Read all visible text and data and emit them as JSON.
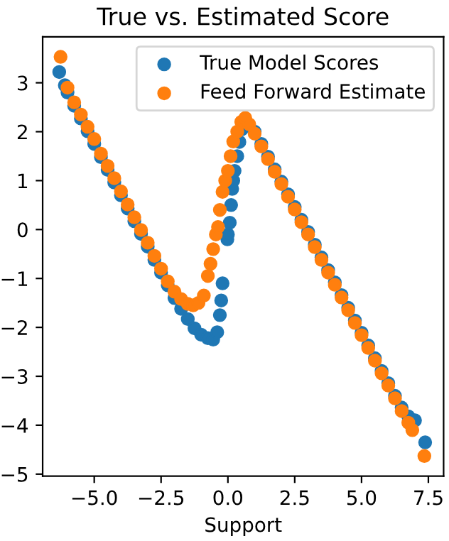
{
  "chart_data": {
    "type": "scatter",
    "title": "True vs. Estimated Score",
    "xlabel": "Support",
    "series": [
      {
        "name": "True Model Scores",
        "color": "#1f77b4",
        "x": [
          -6.31,
          -6.1,
          -6.0,
          -5.75,
          -5.5,
          -5.25,
          -5.0,
          -4.75,
          -4.5,
          -4.25,
          -4.0,
          -3.75,
          -3.5,
          -3.25,
          -3.0,
          -2.75,
          -2.5,
          -2.25,
          -2.0,
          -1.75,
          -1.5,
          -1.25,
          -1.0,
          -0.75,
          -0.55,
          -0.4,
          -0.3,
          -0.25,
          -0.2,
          -0.02,
          0.0,
          0.07,
          0.12,
          0.16,
          0.2,
          0.25,
          0.35,
          0.43,
          0.52,
          1.0,
          1.25,
          1.5,
          1.75,
          2.0,
          2.25,
          2.5,
          2.75,
          3.0,
          3.25,
          3.5,
          3.75,
          4.0,
          4.25,
          4.5,
          4.75,
          5.0,
          5.25,
          5.5,
          5.75,
          6.0,
          6.25,
          6.5,
          6.75,
          7.0,
          7.38
        ],
        "values": [
          3.22,
          2.95,
          2.8,
          2.53,
          2.27,
          2.01,
          1.75,
          1.48,
          1.22,
          0.96,
          0.7,
          0.43,
          0.17,
          -0.09,
          -0.35,
          -0.62,
          -0.88,
          -1.14,
          -1.4,
          -1.62,
          -1.83,
          -2.02,
          -2.15,
          -2.22,
          -2.25,
          -2.1,
          -1.75,
          -1.45,
          -1.1,
          -0.2,
          -0.1,
          0.14,
          0.5,
          0.83,
          1.0,
          1.2,
          1.5,
          1.79,
          2.05,
          2.0,
          1.75,
          1.49,
          1.23,
          0.98,
          0.72,
          0.46,
          0.2,
          -0.05,
          -0.31,
          -0.57,
          -0.83,
          -1.08,
          -1.34,
          -1.6,
          -1.86,
          -2.11,
          -2.37,
          -2.63,
          -2.89,
          -3.14,
          -3.4,
          -3.64,
          -3.82,
          -3.9,
          -4.35
        ]
      },
      {
        "name": "Feed Forward Estimate",
        "color": "#ff7f0e",
        "x": [
          -6.26,
          -6.0,
          -5.75,
          -5.5,
          -5.25,
          -5.0,
          -4.75,
          -4.5,
          -4.25,
          -4.0,
          -3.75,
          -3.5,
          -3.25,
          -3.0,
          -2.75,
          -2.5,
          -2.25,
          -2.0,
          -1.75,
          -1.5,
          -1.3,
          -1.1,
          -0.9,
          -0.75,
          -0.65,
          -0.55,
          -0.45,
          -0.37,
          -0.3,
          -0.2,
          -0.1,
          0.0,
          0.1,
          0.2,
          0.35,
          0.5,
          0.65,
          0.8,
          1.0,
          1.25,
          1.5,
          1.75,
          2.0,
          2.25,
          2.5,
          2.75,
          3.0,
          3.25,
          3.5,
          3.75,
          4.0,
          4.25,
          4.5,
          4.75,
          5.0,
          5.25,
          5.5,
          5.75,
          6.0,
          6.25,
          6.5,
          6.75,
          6.9,
          7.35
        ],
        "values": [
          3.53,
          2.9,
          2.6,
          2.35,
          2.1,
          1.85,
          1.55,
          1.3,
          1.05,
          0.78,
          0.51,
          0.25,
          -0.01,
          -0.27,
          -0.54,
          -0.8,
          -1.06,
          -1.27,
          -1.42,
          -1.52,
          -1.55,
          -1.5,
          -1.35,
          -0.95,
          -0.7,
          -0.4,
          -0.1,
          0.05,
          0.4,
          0.77,
          1.0,
          1.2,
          1.5,
          1.8,
          2.0,
          2.2,
          2.28,
          2.15,
          1.96,
          1.7,
          1.44,
          1.18,
          0.93,
          0.67,
          0.41,
          0.15,
          -0.1,
          -0.36,
          -0.62,
          -0.88,
          -1.13,
          -1.39,
          -1.65,
          -1.91,
          -2.16,
          -2.42,
          -2.68,
          -2.94,
          -3.19,
          -3.45,
          -3.71,
          -3.95,
          -4.1,
          -4.63
        ]
      }
    ],
    "xlim": [
      -6.93,
      8.07
    ],
    "ylim": [
      -5.04,
      3.94
    ],
    "xticks": [
      {
        "value": -5.0,
        "label": "−5.0"
      },
      {
        "value": -2.5,
        "label": "−2.5"
      },
      {
        "value": 0.0,
        "label": "0.0"
      },
      {
        "value": 2.5,
        "label": "2.5"
      },
      {
        "value": 5.0,
        "label": "5.0"
      },
      {
        "value": 7.5,
        "label": "7.5"
      }
    ],
    "yticks": [
      {
        "value": -5,
        "label": "−5"
      },
      {
        "value": -4,
        "label": "−4"
      },
      {
        "value": -3,
        "label": "−3"
      },
      {
        "value": -2,
        "label": "−2"
      },
      {
        "value": -1,
        "label": "−1"
      },
      0,
      1,
      2,
      3
    ],
    "legend": "top right",
    "marker": "circle",
    "grid": false
  }
}
